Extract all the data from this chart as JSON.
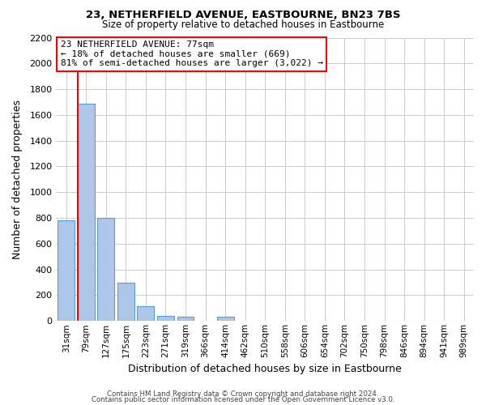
{
  "title": "23, NETHERFIELD AVENUE, EASTBOURNE, BN23 7BS",
  "subtitle": "Size of property relative to detached houses in Eastbourne",
  "xlabel": "Distribution of detached houses by size in Eastbourne",
  "ylabel": "Number of detached properties",
  "footer_line1": "Contains HM Land Registry data © Crown copyright and database right 2024.",
  "footer_line2": "Contains public sector information licensed under the Open Government Licence v3.0.",
  "categories": [
    "31sqm",
    "79sqm",
    "127sqm",
    "175sqm",
    "223sqm",
    "271sqm",
    "319sqm",
    "366sqm",
    "414sqm",
    "462sqm",
    "510sqm",
    "558sqm",
    "606sqm",
    "654sqm",
    "702sqm",
    "750sqm",
    "798sqm",
    "846sqm",
    "894sqm",
    "941sqm",
    "989sqm"
  ],
  "bar_values": [
    780,
    1690,
    800,
    300,
    115,
    40,
    35,
    0,
    35,
    0,
    0,
    0,
    0,
    0,
    0,
    0,
    0,
    0,
    0,
    0,
    0
  ],
  "bar_color": "#aec6e8",
  "bar_edge_color": "#5b9bd5",
  "ylim": [
    0,
    2200
  ],
  "yticks": [
    0,
    200,
    400,
    600,
    800,
    1000,
    1200,
    1400,
    1600,
    1800,
    2000,
    2200
  ],
  "annotation_line1": "23 NETHERFIELD AVENUE: 77sqm",
  "annotation_line2": "← 18% of detached houses are smaller (669)",
  "annotation_line3": "81% of semi-detached houses are larger (3,022) →",
  "red_line_bar_index": 1,
  "background_color": "#ffffff",
  "grid_color": "#cccccc"
}
